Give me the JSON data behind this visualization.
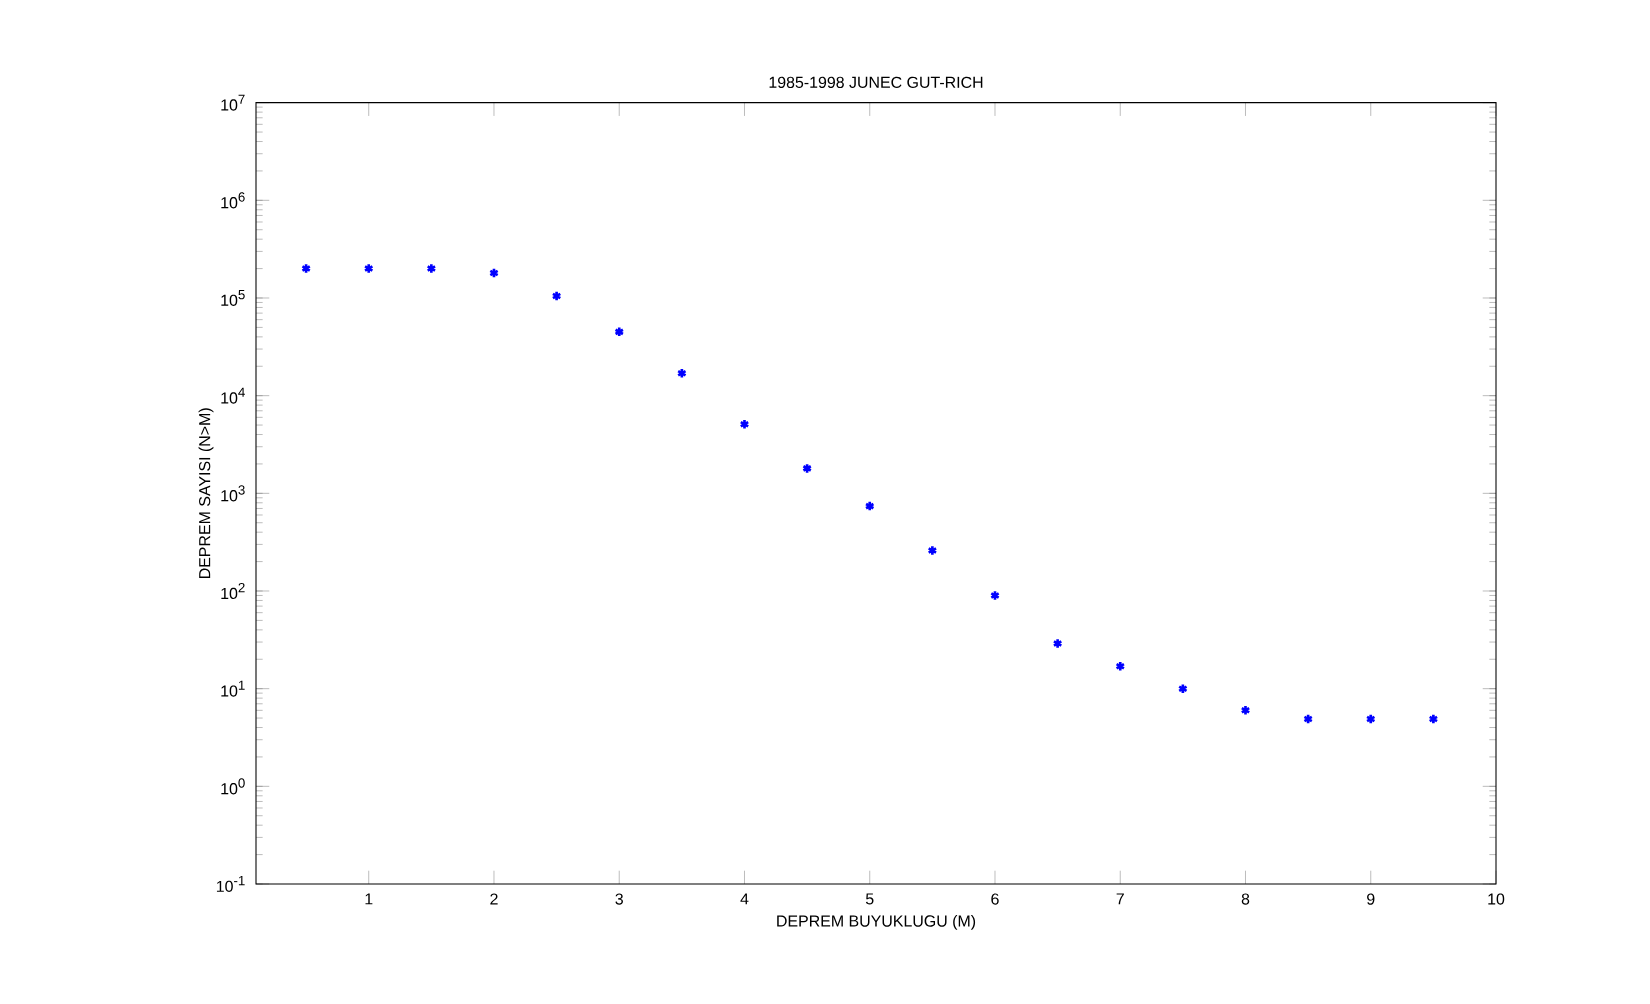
{
  "chart_data": {
    "type": "scatter",
    "title": "1985-1998 JUNEC GUT-RICH",
    "xlabel": "DEPREM BUYUKLUGU (M)",
    "ylabel": "DEPREM SAYISI (N>M)",
    "x": [
      0.5,
      1,
      1.5,
      2,
      2.5,
      3,
      3.5,
      4,
      4.5,
      5,
      5.5,
      6,
      6.5,
      7,
      7.5,
      8,
      8.5,
      9,
      9.5
    ],
    "series": [
      {
        "color": "#0000ff",
        "values": [
          200000,
          200000,
          200000,
          180000,
          105000,
          45000,
          17000,
          5100,
          1800,
          740,
          260,
          90,
          29,
          17,
          10,
          6,
          4.9,
          4.9,
          4.9
        ]
      }
    ],
    "xlim": [
      0.1,
      10
    ],
    "xticks": [
      1,
      2,
      3,
      4,
      5,
      6,
      7,
      8,
      9,
      10
    ],
    "ylim": [
      0.1,
      10000000
    ],
    "yticks": [
      {
        "value": 0.1,
        "label": "10$^{-1}$"
      },
      {
        "value": 1,
        "label": "10$^{0}$"
      },
      {
        "value": 10,
        "label": "10$^{1}$"
      },
      {
        "value": 100,
        "label": "10$^{2}$"
      },
      {
        "value": 1000,
        "label": "10$^{3}$"
      },
      {
        "value": 10000,
        "label": "10$^{4}$"
      },
      {
        "value": 100000,
        "label": "10$^{5}$"
      },
      {
        "value": 1000000,
        "label": "10$^{6}$"
      },
      {
        "value": 10000000,
        "label": "10$^{7}$"
      }
    ],
    "log": "y",
    "marker": "cross"
  }
}
